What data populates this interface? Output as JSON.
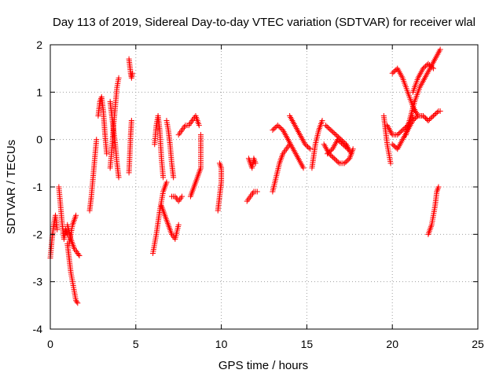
{
  "chart_data": {
    "type": "scatter",
    "title": "Day 113 of 2019, Sidereal Day-to-day VTEC variation (SDTVAR) for receiver wlal",
    "xlabel": "GPS time / hours",
    "ylabel": "SDTVAR / TECUs",
    "xlim": [
      0,
      25
    ],
    "ylim": [
      -4,
      2
    ],
    "xticks": [
      "0",
      "5",
      "10",
      "15",
      "20",
      "25"
    ],
    "yticks": [
      "-4",
      "-3",
      "-2",
      "-1",
      "0",
      "1",
      "2"
    ],
    "grid": true,
    "marker": "+",
    "series": [
      {
        "name": "SDTVAR",
        "color": "#ff0000",
        "tracks": [
          [
            [
              0.0,
              -2.5
            ],
            [
              0.1,
              -2.1
            ],
            [
              0.2,
              -1.8
            ],
            [
              0.3,
              -1.6
            ],
            [
              0.4,
              -1.9
            ]
          ],
          [
            [
              0.5,
              -1.0
            ],
            [
              0.6,
              -1.4
            ],
            [
              0.7,
              -1.8
            ],
            [
              0.8,
              -2.1
            ],
            [
              0.9,
              -1.9
            ],
            [
              1.0,
              -2.0
            ]
          ],
          [
            [
              1.0,
              -2.2
            ],
            [
              1.1,
              -2.5
            ],
            [
              1.2,
              -2.8
            ],
            [
              1.3,
              -3.0
            ],
            [
              1.4,
              -3.2
            ],
            [
              1.5,
              -3.4
            ],
            [
              1.6,
              -3.45
            ]
          ],
          [
            [
              1.0,
              -1.8
            ],
            [
              1.2,
              -2.1
            ],
            [
              1.4,
              -2.3
            ],
            [
              1.6,
              -2.4
            ],
            [
              1.7,
              -2.45
            ]
          ],
          [
            [
              1.1,
              -2.2
            ],
            [
              1.2,
              -2.0
            ],
            [
              1.3,
              -1.8
            ],
            [
              1.4,
              -1.7
            ],
            [
              1.5,
              -1.6
            ]
          ],
          [
            [
              2.3,
              -1.5
            ],
            [
              2.4,
              -1.2
            ],
            [
              2.5,
              -0.8
            ],
            [
              2.6,
              -0.4
            ],
            [
              2.7,
              0.0
            ]
          ],
          [
            [
              2.8,
              0.5
            ],
            [
              2.9,
              0.8
            ],
            [
              3.0,
              0.9
            ],
            [
              3.1,
              0.6
            ],
            [
              3.2,
              0.1
            ],
            [
              3.3,
              -0.3
            ]
          ],
          [
            [
              3.5,
              -0.6
            ],
            [
              3.6,
              -0.2
            ],
            [
              3.7,
              0.3
            ],
            [
              3.8,
              0.7
            ],
            [
              3.9,
              1.1
            ],
            [
              4.0,
              1.3
            ]
          ],
          [
            [
              3.5,
              0.8
            ],
            [
              3.6,
              0.5
            ],
            [
              3.7,
              0.2
            ],
            [
              3.8,
              -0.1
            ],
            [
              3.9,
              -0.5
            ],
            [
              4.0,
              -0.8
            ]
          ],
          [
            [
              4.6,
              1.7
            ],
            [
              4.65,
              1.55
            ],
            [
              4.7,
              1.4
            ],
            [
              4.75,
              1.3
            ],
            [
              4.8,
              1.4
            ]
          ],
          [
            [
              4.6,
              -0.7
            ],
            [
              4.65,
              -0.3
            ],
            [
              4.7,
              0.1
            ],
            [
              4.75,
              0.4
            ]
          ],
          [
            [
              6.0,
              -2.4
            ],
            [
              6.2,
              -2.0
            ],
            [
              6.4,
              -1.5
            ],
            [
              6.6,
              -1.1
            ],
            [
              6.8,
              -0.9
            ]
          ],
          [
            [
              6.1,
              -0.1
            ],
            [
              6.2,
              0.3
            ],
            [
              6.3,
              0.5
            ],
            [
              6.4,
              0.2
            ],
            [
              6.5,
              -0.4
            ],
            [
              6.6,
              -0.8
            ]
          ],
          [
            [
              6.8,
              0.4
            ],
            [
              6.9,
              0.2
            ],
            [
              7.0,
              -0.1
            ],
            [
              7.1,
              -0.5
            ],
            [
              7.2,
              -0.8
            ]
          ],
          [
            [
              6.5,
              -1.4
            ],
            [
              6.7,
              -1.6
            ],
            [
              6.9,
              -1.8
            ],
            [
              7.1,
              -2.0
            ],
            [
              7.3,
              -2.1
            ],
            [
              7.5,
              -1.8
            ]
          ],
          [
            [
              7.1,
              -1.2
            ],
            [
              7.3,
              -1.2
            ],
            [
              7.5,
              -1.3
            ],
            [
              7.7,
              -1.2
            ]
          ],
          [
            [
              7.5,
              0.1
            ],
            [
              7.7,
              0.2
            ],
            [
              7.9,
              0.3
            ],
            [
              8.1,
              0.3
            ],
            [
              8.3,
              0.4
            ],
            [
              8.5,
              0.5
            ],
            [
              8.7,
              0.3
            ]
          ],
          [
            [
              8.2,
              -1.2
            ],
            [
              8.4,
              -1.0
            ],
            [
              8.6,
              -0.8
            ],
            [
              8.8,
              -0.6
            ],
            [
              8.8,
              -0.2
            ],
            [
              8.8,
              0.1
            ]
          ],
          [
            [
              9.8,
              -1.5
            ],
            [
              9.9,
              -1.2
            ],
            [
              10.0,
              -0.9
            ],
            [
              10.0,
              -0.6
            ],
            [
              9.9,
              -0.5
            ]
          ],
          [
            [
              11.5,
              -1.3
            ],
            [
              11.7,
              -1.2
            ],
            [
              11.9,
              -1.1
            ],
            [
              12.1,
              -1.1
            ]
          ],
          [
            [
              11.6,
              -0.4
            ],
            [
              11.7,
              -0.5
            ],
            [
              11.8,
              -0.6
            ],
            [
              11.9,
              -0.4
            ],
            [
              12.0,
              -0.5
            ]
          ],
          [
            [
              13.0,
              -1.1
            ],
            [
              13.2,
              -0.8
            ],
            [
              13.4,
              -0.5
            ],
            [
              13.6,
              -0.3
            ],
            [
              13.8,
              -0.2
            ],
            [
              14.0,
              -0.1
            ]
          ],
          [
            [
              13.0,
              0.2
            ],
            [
              13.3,
              0.3
            ],
            [
              13.6,
              0.2
            ],
            [
              13.9,
              0.0
            ],
            [
              14.2,
              -0.2
            ],
            [
              14.5,
              -0.4
            ],
            [
              14.8,
              -0.6
            ]
          ],
          [
            [
              14.0,
              0.5
            ],
            [
              14.3,
              0.3
            ],
            [
              14.6,
              0.1
            ],
            [
              14.9,
              -0.1
            ],
            [
              15.2,
              -0.2
            ]
          ],
          [
            [
              15.3,
              -0.6
            ],
            [
              15.5,
              -0.1
            ],
            [
              15.7,
              0.2
            ],
            [
              15.9,
              0.4
            ]
          ],
          [
            [
              16.1,
              0.3
            ],
            [
              16.4,
              0.2
            ],
            [
              16.7,
              0.1
            ],
            [
              17.0,
              0.0
            ],
            [
              17.3,
              -0.1
            ],
            [
              17.6,
              -0.3
            ]
          ],
          [
            [
              16.0,
              -0.1
            ],
            [
              16.3,
              -0.3
            ],
            [
              16.6,
              -0.4
            ],
            [
              16.9,
              -0.5
            ],
            [
              17.2,
              -0.5
            ],
            [
              17.5,
              -0.4
            ],
            [
              17.7,
              -0.2
            ]
          ],
          [
            [
              16.2,
              -0.3
            ],
            [
              16.5,
              -0.2
            ],
            [
              16.8,
              0.0
            ],
            [
              17.1,
              -0.1
            ],
            [
              17.4,
              -0.2
            ]
          ],
          [
            [
              19.5,
              0.5
            ],
            [
              19.6,
              0.2
            ],
            [
              19.7,
              -0.1
            ],
            [
              19.8,
              -0.3
            ],
            [
              19.9,
              -0.5
            ]
          ],
          [
            [
              19.7,
              0.3
            ],
            [
              20.0,
              0.1
            ],
            [
              20.3,
              0.1
            ],
            [
              20.6,
              0.2
            ],
            [
              20.9,
              0.3
            ],
            [
              21.2,
              0.5
            ]
          ],
          [
            [
              20.0,
              -0.1
            ],
            [
              20.3,
              -0.2
            ],
            [
              20.6,
              0.0
            ],
            [
              20.9,
              0.2
            ],
            [
              21.2,
              0.4
            ],
            [
              21.5,
              0.5
            ],
            [
              21.8,
              0.5
            ],
            [
              22.1,
              0.4
            ]
          ],
          [
            [
              20.0,
              1.4
            ],
            [
              20.3,
              1.5
            ],
            [
              20.6,
              1.3
            ],
            [
              20.9,
              1.0
            ],
            [
              21.2,
              0.7
            ],
            [
              21.5,
              0.5
            ],
            [
              21.8,
              0.5
            ],
            [
              22.1,
              0.4
            ]
          ],
          [
            [
              20.8,
              0.1
            ],
            [
              21.0,
              0.4
            ],
            [
              21.3,
              0.8
            ],
            [
              21.6,
              1.1
            ],
            [
              21.9,
              1.3
            ],
            [
              22.2,
              1.5
            ],
            [
              22.5,
              1.7
            ],
            [
              22.8,
              1.9
            ]
          ],
          [
            [
              21.2,
              1.0
            ],
            [
              21.5,
              1.3
            ],
            [
              21.8,
              1.5
            ],
            [
              22.1,
              1.6
            ],
            [
              22.4,
              1.5
            ]
          ],
          [
            [
              22.1,
              0.4
            ],
            [
              22.4,
              0.5
            ],
            [
              22.7,
              0.6
            ],
            [
              22.8,
              0.6
            ]
          ],
          [
            [
              22.1,
              -2.0
            ],
            [
              22.3,
              -1.8
            ],
            [
              22.5,
              -1.4
            ],
            [
              22.6,
              -1.1
            ],
            [
              22.7,
              -1.0
            ]
          ]
        ]
      }
    ]
  }
}
